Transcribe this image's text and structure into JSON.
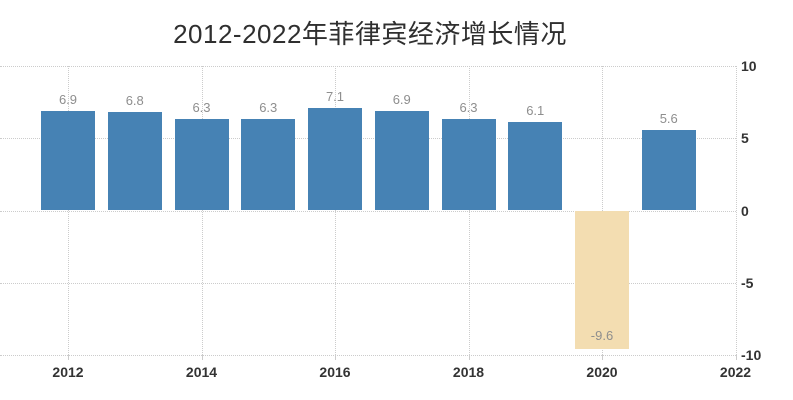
{
  "chart_data": {
    "type": "bar",
    "title": "2012-2022年菲律宾经济增长情况",
    "categories": [
      "2012",
      "2013",
      "2014",
      "2015",
      "2016",
      "2017",
      "2018",
      "2019",
      "2020",
      "2021"
    ],
    "values": [
      6.9,
      6.8,
      6.3,
      6.3,
      7.1,
      6.9,
      6.3,
      6.1,
      -9.6,
      5.6
    ],
    "value_labels": [
      "6.9",
      "6.8",
      "6.3",
      "6.3",
      "7.1",
      "6.9",
      "6.3",
      "6.1",
      "-9.6",
      "5.6"
    ],
    "xlabel": "",
    "ylabel": "",
    "xticks": [
      "2012",
      "2014",
      "2016",
      "2018",
      "2020",
      "2022"
    ],
    "yticks": [
      10,
      5,
      0,
      -5,
      -10
    ],
    "ylim": [
      -10,
      10
    ],
    "grid": "dotted",
    "legend_position": "none",
    "y_axis_side": "right",
    "colors": {
      "bar_positive": "#4682b4",
      "bar_negative": "#f3ddb1",
      "grid_line": "#cccccc",
      "data_label": "#8e8e8e",
      "axis_label": "#333333",
      "title": "#2f2f2f",
      "background": "#ffffff"
    }
  }
}
